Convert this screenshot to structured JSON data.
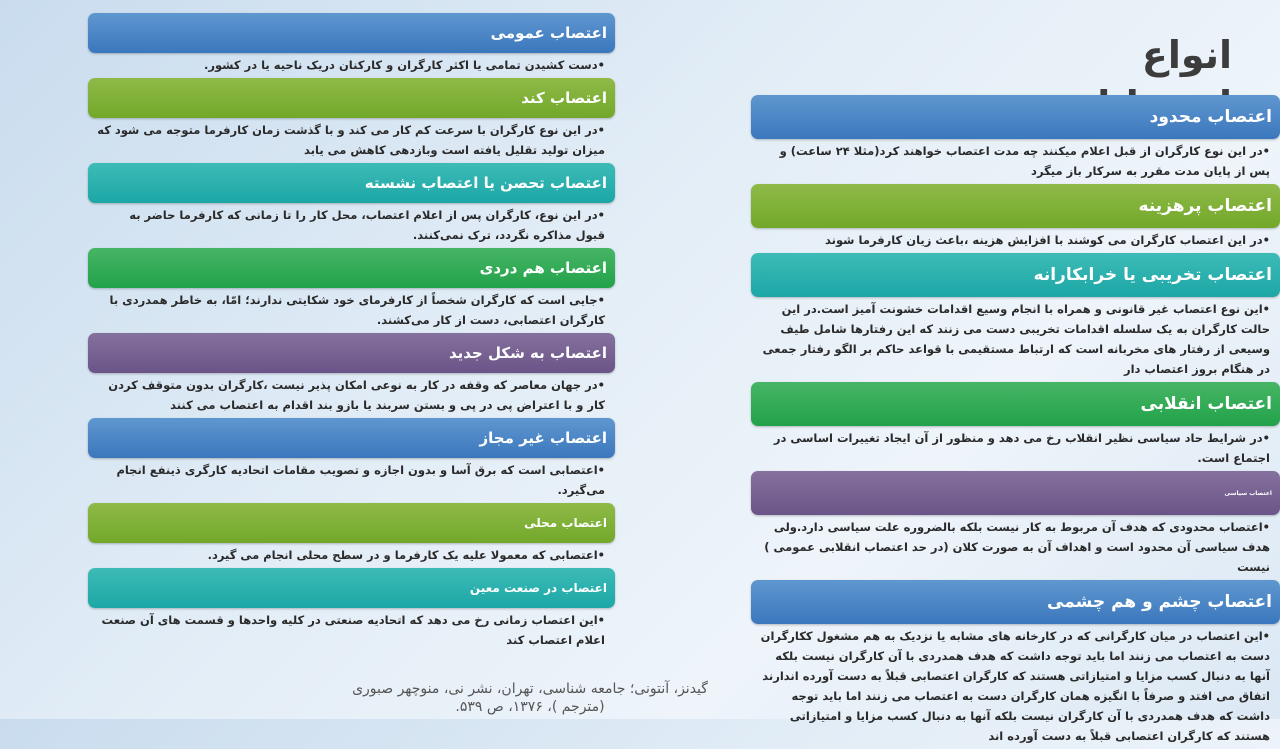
{
  "title": "انواع اعتصابات",
  "colors": {
    "blue": "#4a86c6",
    "green": "#2ea853",
    "olive": "#7eb036",
    "teal": "#27b0ae",
    "purple": "#745d90"
  },
  "left": [
    {
      "heading": "اعتصاب عمومی",
      "color": "blue",
      "text": "•دست کشیدن تمامی یا اکثر کارگران و کارکنان دریک ناحیه یا در کشور."
    },
    {
      "heading": "اعتصاب کند",
      "color": "olive",
      "text": "•در این نوع کارگران با سرعت کم کار می کند و با گذشت زمان کارفرما متوجه می شود که میزان تولید تقلیل یافته است  وبازدهی کاهش می یابد"
    },
    {
      "heading": "اعتصاب تحصن یا اعتصاب نشسته",
      "color": "teal",
      "text": "•در این نوع، کارگران پس از اعلام اعتصاب، محل کار را تا زمانی که کارفرما حاضر به قبول مذاکره نگردد، ترک نمی‌کنند."
    },
    {
      "heading": "اعتصاب هم دردی",
      "color": "green",
      "text": "•جایی است که کارگران شخصاً از کارفرمای خود شکایتی ندارند؛ امّا، به خاطر همدردی با کارگران اعتصابی، دست از کار می‌کشند."
    },
    {
      "heading": "اعتصاب به شکل جدید",
      "color": "purple",
      "text": "•در جهان معاصر که وقفه در کار به نوعی امکان پذیر نیست ،کارگران بدون متوقف کردن کار و با اعتراض پی در پی و بستن سربند یا بازو بند اقدام به  اعتصاب می کنند"
    },
    {
      "heading": "اعتصاب غیر مجاز",
      "color": "blue",
      "text": "•اعتصابی است که برق آسا و بدون اجازه و تصویب مقامات اتحادیه کارگری ذینفع انجام می‌گیرد."
    },
    {
      "heading": "اعتصاب محلی",
      "color": "olive",
      "text": "•اعتصابی که معمولا علیه یک کارفرما و در سطح محلی انجام می گیرد."
    },
    {
      "heading": "اعتصاب در صنعت معین",
      "color": "teal",
      "text": "•این اعتصاب زمانی رخ می دهد که اتحادیه صنعتی در کلیه واحدها و قسمت های آن صنعت اعلام اعتصاب کند"
    }
  ],
  "right": [
    {
      "heading": "اعتصاب محدود",
      "color": "blue",
      "text": "•در این نوع کارگران از قبل اعلام میکنند چه مدت اعتصاب خواهند کرد(مثلا ۲۴ ساعت) و پس از پایان مدت مقرر به سرکار باز میگرد"
    },
    {
      "heading": "اعتصاب پرهزینه",
      "color": "olive",
      "text": "•در این اعتصاب کارگران می کوشند با افزایش هزینه ،باعث زیان کارفرما شوند"
    },
    {
      "heading": "اعتصاب تخریبی یا خرابکارانه",
      "color": "teal",
      "text": "•این نوع اعتصاب غیر قانونی و همراه با انجام وسیع اقدامات خشونت آمیز است.در این حالت کارگران به یک سلسله اقدامات تخریبی دست می زنند که این رفتارها شامل طیف وسیعی از رفتار های مخربانه است که ارتباط مستقیمی با قواعد حاکم بر الگو رفتار جمعی در هنگام بروز اعتصاب دار"
    },
    {
      "heading": "اعتصاب انقلابی",
      "color": "green",
      "text": "•در شرایط حاد سیاسی نظیر انقلاب رخ می دهد و منظور از آن ایجاد تغییرات اساسی در اجتماع است."
    },
    {
      "heading": "اعتصاب سیاسی",
      "color": "purple",
      "text": "•اعتصاب محدودی که هدف آن مربوط به کار نیست بلکه بالضروره علت سیاسی دارد.ولی هدف سیاسی آن محدود است و اهداف آن به صورت کلان (در حد اعتصاب انقلابی عمومی ) نیست"
    },
    {
      "heading": "اعتصاب چشم و هم چشمی",
      "color": "blue",
      "text": "•این اعتصاب در میان کارگرانی که در کارخانه های مشابه یا نزدیک به هم مشغول ککارگران دست به اعتصاب می زنند اما باید توجه داشت که هدف همدردی با آن کارگران نیست بلکه آنها به دنبال کسب مزایا و امتیازاتی هستند که کارگران اعتصابی قبلاً به دست آورده اندارند اتفاق می افتد و صرفاً با انگیزه همان کارگران دست به اعتصاب می زنند اما باید توجه داشت که هدف همدردی با آن کارگران نیست بلکه آنها به دنبال کسب مزایا و امتیازاتی هستند که کارگران اعتصابی قبلاً به دست آورده اند"
    }
  ],
  "citation": "گیدنز، آنتونی؛ جامعه شناسی، تهران، نشر نی، منوچهر صبوری (مترجم )، ۱۳۷۶، ص ۵۳۹."
}
